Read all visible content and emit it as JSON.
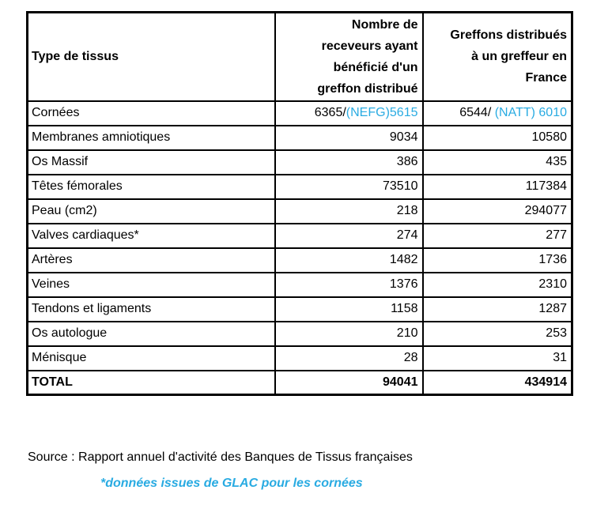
{
  "colors": {
    "accent": "#29ABE2"
  },
  "table": {
    "header": {
      "tissue": "Type de tissus",
      "receivers": "Nombre de receveurs ayant bénéficié d'un greffon distribué",
      "grafts": "Greffons distribués à un greffeur en France"
    },
    "rows": [
      {
        "label": "Cornées",
        "receivers_main": "6365/",
        "receivers_note": "(NEFG)5615",
        "grafts_main": "6544/ ",
        "grafts_note": "(NATT) 6010"
      },
      {
        "label": "Membranes amniotiques",
        "receivers": "9034",
        "grafts": "10580"
      },
      {
        "label": "Os Massif",
        "receivers": "386",
        "grafts": "435"
      },
      {
        "label": "Têtes fémorales",
        "receivers": "73510",
        "grafts": "117384"
      },
      {
        "label": "Peau (cm2)",
        "receivers": "218",
        "grafts": "294077"
      },
      {
        "label": "Valves cardiaques*",
        "receivers": "274",
        "grafts": "277"
      },
      {
        "label": "Artères",
        "receivers": "1482",
        "grafts": "1736"
      },
      {
        "label": "Veines",
        "receivers": "1376",
        "grafts": "2310"
      },
      {
        "label": "Tendons et ligaments",
        "receivers": "1158",
        "grafts": "1287"
      },
      {
        "label": "Os autologue",
        "receivers": "210",
        "grafts": "253"
      },
      {
        "label": "Ménisque",
        "receivers": "28",
        "grafts": "31"
      }
    ],
    "total": {
      "label": "TOTAL",
      "receivers": "94041",
      "grafts": "434914"
    }
  },
  "footer": {
    "source": "Source : Rapport annuel d'activité des Banques de Tissus françaises",
    "footnote": "*données issues de GLAC pour les cornées"
  }
}
